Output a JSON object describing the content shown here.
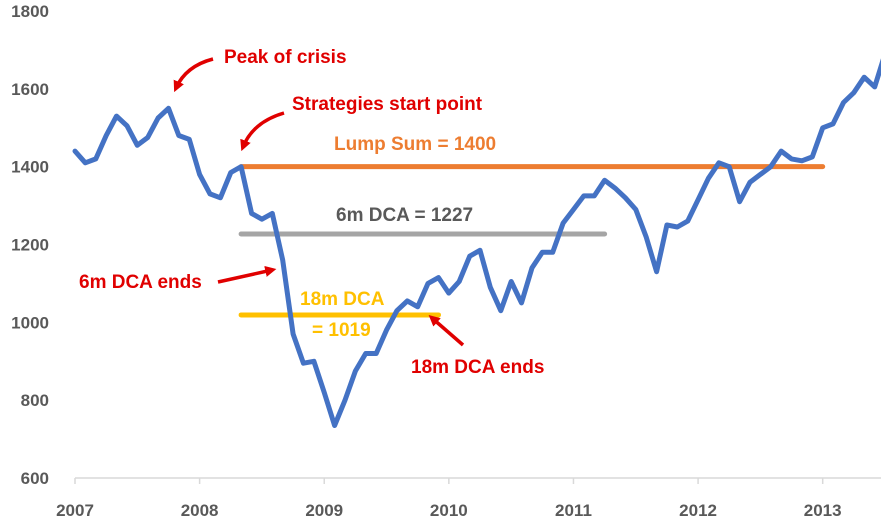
{
  "chart_data": {
    "type": "line",
    "title": "",
    "xlabel": "",
    "ylabel": "",
    "xlim": [
      2007,
      2013.5
    ],
    "ylim": [
      600,
      1800
    ],
    "y_ticks": [
      600,
      800,
      1000,
      1200,
      1400,
      1600,
      1800
    ],
    "x_ticks": [
      "2007",
      "2008",
      "2009",
      "2010",
      "2011",
      "2012",
      "2013"
    ],
    "grid": false,
    "legend": "none",
    "series": [
      {
        "color": "#4472c4",
        "x": [
          2007.0,
          2007.083,
          2007.167,
          2007.25,
          2007.333,
          2007.417,
          2007.5,
          2007.583,
          2007.667,
          2007.75,
          2007.833,
          2007.917,
          2008.0,
          2008.083,
          2008.167,
          2008.25,
          2008.333,
          2008.417,
          2008.5,
          2008.583,
          2008.667,
          2008.75,
          2008.833,
          2008.917,
          2009.0,
          2009.083,
          2009.167,
          2009.25,
          2009.333,
          2009.417,
          2009.5,
          2009.583,
          2009.667,
          2009.75,
          2009.833,
          2009.917,
          2010.0,
          2010.083,
          2010.167,
          2010.25,
          2010.333,
          2010.417,
          2010.5,
          2010.583,
          2010.667,
          2010.75,
          2010.833,
          2010.917,
          2011.0,
          2011.083,
          2011.167,
          2011.25,
          2011.333,
          2011.417,
          2011.5,
          2011.583,
          2011.667,
          2011.75,
          2011.833,
          2011.917,
          2012.0,
          2012.083,
          2012.167,
          2012.25,
          2012.333,
          2012.417,
          2012.5,
          2012.583,
          2012.667,
          2012.75,
          2012.833,
          2012.917,
          2013.0,
          2013.083,
          2013.167,
          2013.25,
          2013.333,
          2013.417,
          2013.5
        ],
        "y": [
          1440,
          1410,
          1420,
          1480,
          1530,
          1505,
          1455,
          1475,
          1525,
          1550,
          1480,
          1470,
          1380,
          1330,
          1320,
          1385,
          1400,
          1280,
          1265,
          1280,
          1160,
          970,
          895,
          900,
          820,
          735,
          800,
          875,
          920,
          920,
          980,
          1030,
          1055,
          1040,
          1100,
          1115,
          1075,
          1105,
          1170,
          1185,
          1090,
          1030,
          1105,
          1050,
          1140,
          1180,
          1180,
          1255,
          1290,
          1325,
          1325,
          1365,
          1345,
          1320,
          1290,
          1220,
          1130,
          1250,
          1245,
          1260,
          1315,
          1370,
          1410,
          1400,
          1310,
          1360,
          1380,
          1400,
          1440,
          1420,
          1415,
          1425,
          1500,
          1510,
          1565,
          1590,
          1630,
          1605,
          1690
        ]
      }
    ],
    "reference_lines": [
      {
        "value": 1400,
        "x_start": 2008.333,
        "x_end": 2013.0,
        "color": "#ed7d31",
        "label": "Lump Sum = 1400",
        "label_color": "#ed7d31"
      },
      {
        "value": 1227,
        "x_start": 2008.333,
        "x_end": 2011.25,
        "color": "#a5a5a5",
        "label": "6m DCA = 1227",
        "label_color": "#595959"
      },
      {
        "value": 1019,
        "x_start": 2008.333,
        "x_end": 2009.917,
        "color": "#ffc000",
        "label_lines": [
          "18m DCA",
          "= 1019"
        ],
        "label_color": "#ffc000"
      }
    ],
    "annotations": [
      {
        "text": "Peak of crisis",
        "color": "#e00000"
      },
      {
        "text": "Strategies start point",
        "color": "#e00000"
      },
      {
        "text": "6m DCA ends",
        "color": "#e00000"
      },
      {
        "text": "18m DCA ends",
        "color": "#e00000"
      }
    ]
  }
}
